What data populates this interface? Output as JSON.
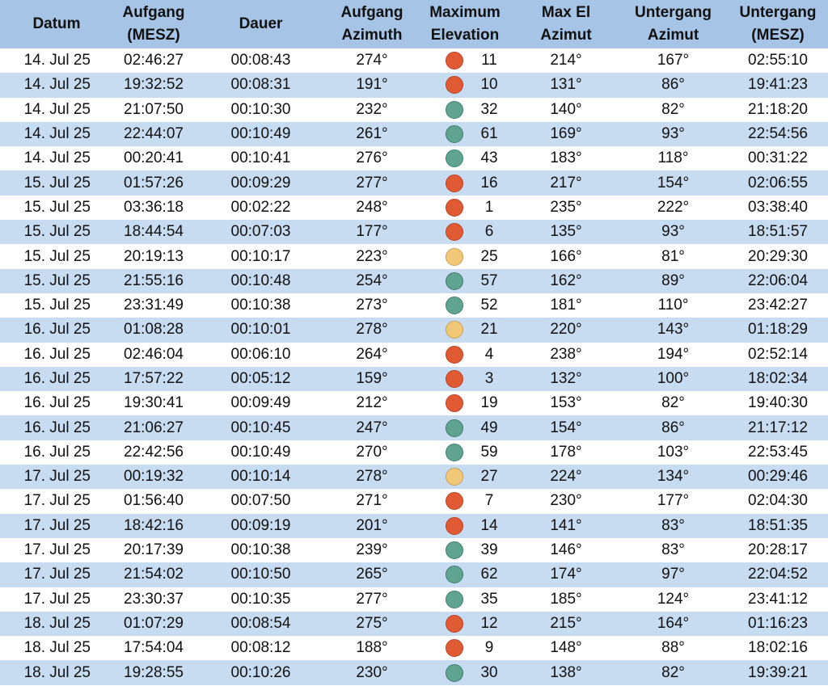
{
  "headers": {
    "datum": "Datum",
    "aufgang": "Aufgang\n(MESZ)",
    "dauer": "Dauer",
    "aufgang_azimuth": "Aufgang\nAzimuth",
    "max_elevation": "Maximum\nElevation",
    "max_el_azimut": "Max El\nAzimut",
    "untergang_azimut": "Untergang\nAzimut",
    "untergang_mesz": "Untergang\n(MESZ)"
  },
  "colors": {
    "red": "#e05a33",
    "green": "#5fa391",
    "yellow": "#f0c878",
    "header_bg": "#a6c4e6",
    "row_alt": "#c7dbf1"
  },
  "rows": [
    {
      "datum": "14. Jul 25",
      "aufgang": "02:46:27",
      "dauer": "00:08:43",
      "az": "274°",
      "dot": "red",
      "elev": "11",
      "maxel": "214°",
      "uaz": "167°",
      "utime": "02:55:10"
    },
    {
      "datum": "14. Jul 25",
      "aufgang": "19:32:52",
      "dauer": "00:08:31",
      "az": "191°",
      "dot": "red",
      "elev": "10",
      "maxel": "131°",
      "uaz": "86°",
      "utime": "19:41:23"
    },
    {
      "datum": "14. Jul 25",
      "aufgang": "21:07:50",
      "dauer": "00:10:30",
      "az": "232°",
      "dot": "green",
      "elev": "32",
      "maxel": "140°",
      "uaz": "82°",
      "utime": "21:18:20"
    },
    {
      "datum": "14. Jul 25",
      "aufgang": "22:44:07",
      "dauer": "00:10:49",
      "az": "261°",
      "dot": "green",
      "elev": "61",
      "maxel": "169°",
      "uaz": "93°",
      "utime": "22:54:56"
    },
    {
      "datum": "14. Jul 25",
      "aufgang": "00:20:41",
      "dauer": "00:10:41",
      "az": "276°",
      "dot": "green",
      "elev": "43",
      "maxel": "183°",
      "uaz": "118°",
      "utime": "00:31:22"
    },
    {
      "datum": "15. Jul 25",
      "aufgang": "01:57:26",
      "dauer": "00:09:29",
      "az": "277°",
      "dot": "red",
      "elev": "16",
      "maxel": "217°",
      "uaz": "154°",
      "utime": "02:06:55"
    },
    {
      "datum": "15. Jul 25",
      "aufgang": "03:36:18",
      "dauer": "00:02:22",
      "az": "248°",
      "dot": "red",
      "elev": "1",
      "maxel": "235°",
      "uaz": "222°",
      "utime": "03:38:40"
    },
    {
      "datum": "15. Jul 25",
      "aufgang": "18:44:54",
      "dauer": "00:07:03",
      "az": "177°",
      "dot": "red",
      "elev": "6",
      "maxel": "135°",
      "uaz": "93°",
      "utime": "18:51:57"
    },
    {
      "datum": "15. Jul 25",
      "aufgang": "20:19:13",
      "dauer": "00:10:17",
      "az": "223°",
      "dot": "yellow",
      "elev": "25",
      "maxel": "166°",
      "uaz": "81°",
      "utime": "20:29:30"
    },
    {
      "datum": "15. Jul 25",
      "aufgang": "21:55:16",
      "dauer": "00:10:48",
      "az": "254°",
      "dot": "green",
      "elev": "57",
      "maxel": "162°",
      "uaz": "89°",
      "utime": "22:06:04"
    },
    {
      "datum": "15. Jul 25",
      "aufgang": "23:31:49",
      "dauer": "00:10:38",
      "az": "273°",
      "dot": "green",
      "elev": "52",
      "maxel": "181°",
      "uaz": "110°",
      "utime": "23:42:27"
    },
    {
      "datum": "16. Jul 25",
      "aufgang": "01:08:28",
      "dauer": "00:10:01",
      "az": "278°",
      "dot": "yellow",
      "elev": "21",
      "maxel": "220°",
      "uaz": "143°",
      "utime": "01:18:29"
    },
    {
      "datum": "16. Jul 25",
      "aufgang": "02:46:04",
      "dauer": "00:06:10",
      "az": "264°",
      "dot": "red",
      "elev": "4",
      "maxel": "238°",
      "uaz": "194°",
      "utime": "02:52:14"
    },
    {
      "datum": "16. Jul 25",
      "aufgang": "17:57:22",
      "dauer": "00:05:12",
      "az": "159°",
      "dot": "red",
      "elev": "3",
      "maxel": "132°",
      "uaz": "100°",
      "utime": "18:02:34"
    },
    {
      "datum": "16. Jul 25",
      "aufgang": "19:30:41",
      "dauer": "00:09:49",
      "az": "212°",
      "dot": "red",
      "elev": "19",
      "maxel": "153°",
      "uaz": "82°",
      "utime": "19:40:30"
    },
    {
      "datum": "16. Jul 25",
      "aufgang": "21:06:27",
      "dauer": "00:10:45",
      "az": "247°",
      "dot": "green",
      "elev": "49",
      "maxel": "154°",
      "uaz": "86°",
      "utime": "21:17:12"
    },
    {
      "datum": "16. Jul 25",
      "aufgang": "22:42:56",
      "dauer": "00:10:49",
      "az": "270°",
      "dot": "green",
      "elev": "59",
      "maxel": "178°",
      "uaz": "103°",
      "utime": "22:53:45"
    },
    {
      "datum": "17. Jul 25",
      "aufgang": "00:19:32",
      "dauer": "00:10:14",
      "az": "278°",
      "dot": "yellow",
      "elev": "27",
      "maxel": "224°",
      "uaz": "134°",
      "utime": "00:29:46"
    },
    {
      "datum": "17. Jul 25",
      "aufgang": "01:56:40",
      "dauer": "00:07:50",
      "az": "271°",
      "dot": "red",
      "elev": "7",
      "maxel": "230°",
      "uaz": "177°",
      "utime": "02:04:30"
    },
    {
      "datum": "17. Jul 25",
      "aufgang": "18:42:16",
      "dauer": "00:09:19",
      "az": "201°",
      "dot": "red",
      "elev": "14",
      "maxel": "141°",
      "uaz": "83°",
      "utime": "18:51:35"
    },
    {
      "datum": "17. Jul 25",
      "aufgang": "20:17:39",
      "dauer": "00:10:38",
      "az": "239°",
      "dot": "green",
      "elev": "39",
      "maxel": "146°",
      "uaz": "83°",
      "utime": "20:28:17"
    },
    {
      "datum": "17. Jul 25",
      "aufgang": "21:54:02",
      "dauer": "00:10:50",
      "az": "265°",
      "dot": "green",
      "elev": "62",
      "maxel": "174°",
      "uaz": "97°",
      "utime": "22:04:52"
    },
    {
      "datum": "17. Jul 25",
      "aufgang": "23:30:37",
      "dauer": "00:10:35",
      "az": "277°",
      "dot": "green",
      "elev": "35",
      "maxel": "185°",
      "uaz": "124°",
      "utime": "23:41:12"
    },
    {
      "datum": "18. Jul 25",
      "aufgang": "01:07:29",
      "dauer": "00:08:54",
      "az": "275°",
      "dot": "red",
      "elev": "12",
      "maxel": "215°",
      "uaz": "164°",
      "utime": "01:16:23"
    },
    {
      "datum": "18. Jul 25",
      "aufgang": "17:54:04",
      "dauer": "00:08:12",
      "az": "188°",
      "dot": "red",
      "elev": "9",
      "maxel": "148°",
      "uaz": "88°",
      "utime": "18:02:16"
    },
    {
      "datum": "18. Jul 25",
      "aufgang": "19:28:55",
      "dauer": "00:10:26",
      "az": "230°",
      "dot": "green",
      "elev": "30",
      "maxel": "138°",
      "uaz": "82°",
      "utime": "19:39:21"
    }
  ]
}
